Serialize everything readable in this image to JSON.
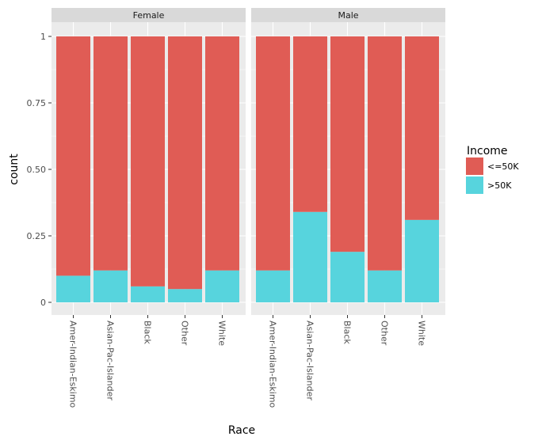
{
  "chart_data": {
    "type": "bar",
    "stacked": true,
    "facet_by": "sex",
    "facets": [
      "Female",
      "Male"
    ],
    "categories": [
      "Amer-Indian-Eskimo",
      "Asian-Pac-Islander",
      "Black",
      "Other",
      "White"
    ],
    "series": [
      {
        "name": "<=50K",
        "color": "#E05C55",
        "values": {
          "Female": [
            0.9,
            0.88,
            0.94,
            0.95,
            0.88
          ],
          "Male": [
            0.88,
            0.66,
            0.81,
            0.88,
            0.69
          ]
        }
      },
      {
        "name": ">50K",
        "color": "#57D4DD",
        "values": {
          "Female": [
            0.1,
            0.12,
            0.06,
            0.05,
            0.12
          ],
          "Male": [
            0.12,
            0.34,
            0.19,
            0.12,
            0.31
          ]
        }
      }
    ],
    "xlabel": "Race",
    "ylabel": "count",
    "ylim": [
      0,
      1
    ],
    "yticks": [
      "0",
      "0.25",
      "0.50",
      "0.75",
      "1"
    ],
    "ytick_values": [
      0,
      0.25,
      0.5,
      0.75,
      1
    ],
    "legend_title": "Income",
    "legend_placement": "right",
    "grid": true
  },
  "colors": {
    "panel_background": "#EBEBEB",
    "strip_background": "#D9D9D9",
    "grid": "#FFFFFF"
  }
}
